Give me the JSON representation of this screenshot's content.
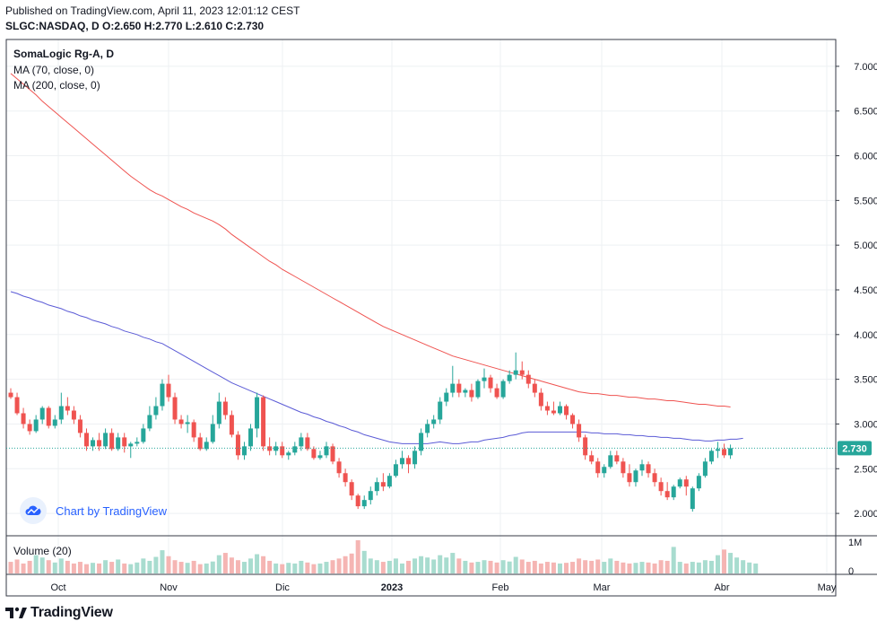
{
  "header": {
    "published": "Published on TradingView.com, April 11, 2023 12:01:12 CEST",
    "ohlc": "SLGC:NASDAQ, D  O:2.650  H:2.770  L:2.610  C:2.730"
  },
  "legend": {
    "title": "SomaLogic Rg-A, D",
    "ma70": "MA (70, close, 0)",
    "ma200": "MA (200, close, 0)",
    "volume": "Volume (20)"
  },
  "branding": {
    "chart_by": "Chart by TradingView",
    "logo": "TradingView"
  },
  "colors": {
    "up": "#26a69a",
    "down": "#ef5350",
    "ma70": "#5b5bd6",
    "ma200": "#ef5350",
    "last_price_bg": "#26a69a"
  },
  "chart_data": {
    "type": "candlestick",
    "symbol": "SLGC:NASDAQ",
    "interval": "D",
    "last_price": 2.73,
    "last_price_label": "2.730",
    "y_range": [
      1.75,
      7.3
    ],
    "y_ticks": [
      "7.000",
      "6.500",
      "6.000",
      "5.500",
      "5.000",
      "4.500",
      "4.000",
      "3.500",
      "3.000",
      "2.500",
      "2.000"
    ],
    "x_labels": [
      "Oct",
      "Nov",
      "Dic",
      "2023",
      "Feb",
      "Mar",
      "Abr",
      "May"
    ],
    "volume_axis_labels": [
      "1M",
      "0"
    ],
    "ohlc": [
      [
        3.35,
        3.4,
        3.28,
        3.3
      ],
      [
        3.3,
        3.35,
        3.1,
        3.12
      ],
      [
        3.12,
        3.18,
        2.95,
        3.0
      ],
      [
        3.0,
        3.05,
        2.88,
        2.92
      ],
      [
        2.92,
        3.1,
        2.9,
        3.05
      ],
      [
        3.05,
        3.2,
        3.0,
        3.18
      ],
      [
        3.18,
        3.2,
        2.95,
        2.98
      ],
      [
        2.98,
        3.1,
        2.95,
        3.05
      ],
      [
        3.05,
        3.35,
        3.0,
        3.2
      ],
      [
        3.2,
        3.3,
        3.1,
        3.15
      ],
      [
        3.15,
        3.2,
        3.0,
        3.05
      ],
      [
        3.05,
        3.1,
        2.85,
        2.9
      ],
      [
        2.9,
        2.95,
        2.7,
        2.75
      ],
      [
        2.75,
        2.85,
        2.7,
        2.82
      ],
      [
        2.82,
        2.9,
        2.7,
        2.75
      ],
      [
        2.75,
        2.95,
        2.72,
        2.9
      ],
      [
        2.9,
        2.95,
        2.7,
        2.72
      ],
      [
        2.72,
        2.9,
        2.7,
        2.85
      ],
      [
        2.85,
        2.9,
        2.68,
        2.75
      ],
      [
        2.75,
        2.8,
        2.62,
        2.78
      ],
      [
        2.78,
        2.85,
        2.75,
        2.8
      ],
      [
        2.8,
        3.0,
        2.78,
        2.95
      ],
      [
        2.95,
        3.2,
        2.92,
        3.1
      ],
      [
        3.1,
        3.3,
        3.05,
        3.2
      ],
      [
        3.2,
        3.5,
        3.15,
        3.45
      ],
      [
        3.45,
        3.55,
        3.25,
        3.3
      ],
      [
        3.3,
        3.35,
        3.0,
        3.05
      ],
      [
        3.05,
        3.1,
        2.95,
        3.0
      ],
      [
        3.0,
        3.1,
        2.9,
        3.02
      ],
      [
        3.02,
        3.05,
        2.8,
        2.85
      ],
      [
        2.85,
        2.9,
        2.7,
        2.72
      ],
      [
        2.72,
        2.85,
        2.7,
        2.8
      ],
      [
        2.8,
        3.1,
        2.78,
        3.0
      ],
      [
        3.0,
        3.35,
        2.95,
        3.25
      ],
      [
        3.25,
        3.3,
        3.05,
        3.1
      ],
      [
        3.1,
        3.15,
        2.85,
        2.88
      ],
      [
        2.88,
        2.92,
        2.6,
        2.65
      ],
      [
        2.65,
        2.8,
        2.6,
        2.75
      ],
      [
        2.75,
        3.0,
        2.7,
        2.95
      ],
      [
        2.95,
        3.35,
        2.85,
        3.3
      ],
      [
        3.3,
        3.32,
        2.7,
        2.75
      ],
      [
        2.75,
        2.85,
        2.65,
        2.7
      ],
      [
        2.7,
        2.8,
        2.65,
        2.75
      ],
      [
        2.75,
        2.8,
        2.62,
        2.65
      ],
      [
        2.65,
        2.7,
        2.6,
        2.68
      ],
      [
        2.68,
        2.8,
        2.65,
        2.75
      ],
      [
        2.75,
        2.9,
        2.7,
        2.85
      ],
      [
        2.85,
        2.9,
        2.7,
        2.72
      ],
      [
        2.72,
        2.75,
        2.6,
        2.62
      ],
      [
        2.62,
        2.7,
        2.6,
        2.65
      ],
      [
        2.65,
        2.8,
        2.62,
        2.75
      ],
      [
        2.75,
        2.78,
        2.55,
        2.58
      ],
      [
        2.58,
        2.62,
        2.4,
        2.45
      ],
      [
        2.45,
        2.5,
        2.3,
        2.35
      ],
      [
        2.35,
        2.38,
        2.15,
        2.2
      ],
      [
        2.2,
        2.22,
        2.05,
        2.08
      ],
      [
        2.08,
        2.2,
        2.05,
        2.15
      ],
      [
        2.15,
        2.3,
        2.1,
        2.25
      ],
      [
        2.25,
        2.4,
        2.2,
        2.35
      ],
      [
        2.35,
        2.45,
        2.25,
        2.3
      ],
      [
        2.3,
        2.45,
        2.28,
        2.42
      ],
      [
        2.42,
        2.6,
        2.4,
        2.55
      ],
      [
        2.55,
        2.7,
        2.5,
        2.62
      ],
      [
        2.62,
        2.65,
        2.45,
        2.55
      ],
      [
        2.55,
        2.75,
        2.5,
        2.7
      ],
      [
        2.7,
        2.95,
        2.65,
        2.9
      ],
      [
        2.9,
        3.05,
        2.85,
        3.0
      ],
      [
        3.0,
        3.1,
        2.95,
        3.05
      ],
      [
        3.05,
        3.3,
        3.0,
        3.25
      ],
      [
        3.25,
        3.4,
        3.2,
        3.35
      ],
      [
        3.35,
        3.65,
        3.3,
        3.45
      ],
      [
        3.45,
        3.5,
        3.3,
        3.35
      ],
      [
        3.35,
        3.4,
        3.3,
        3.38
      ],
      [
        3.38,
        3.45,
        3.25,
        3.3
      ],
      [
        3.3,
        3.5,
        3.28,
        3.48
      ],
      [
        3.48,
        3.62,
        3.4,
        3.52
      ],
      [
        3.52,
        3.55,
        3.35,
        3.4
      ],
      [
        3.4,
        3.45,
        3.28,
        3.3
      ],
      [
        3.3,
        3.5,
        3.28,
        3.48
      ],
      [
        3.48,
        3.6,
        3.45,
        3.55
      ],
      [
        3.55,
        3.8,
        3.5,
        3.6
      ],
      [
        3.6,
        3.7,
        3.5,
        3.55
      ],
      [
        3.55,
        3.6,
        3.4,
        3.45
      ],
      [
        3.45,
        3.5,
        3.3,
        3.35
      ],
      [
        3.35,
        3.4,
        3.15,
        3.2
      ],
      [
        3.2,
        3.25,
        3.1,
        3.15
      ],
      [
        3.15,
        3.25,
        3.1,
        3.12
      ],
      [
        3.12,
        3.25,
        3.1,
        3.2
      ],
      [
        3.2,
        3.22,
        3.05,
        3.1
      ],
      [
        3.1,
        3.12,
        2.95,
        3.0
      ],
      [
        3.0,
        3.05,
        2.8,
        2.85
      ],
      [
        2.85,
        2.88,
        2.6,
        2.65
      ],
      [
        2.65,
        2.7,
        2.55,
        2.58
      ],
      [
        2.58,
        2.62,
        2.4,
        2.45
      ],
      [
        2.45,
        2.55,
        2.4,
        2.52
      ],
      [
        2.52,
        2.7,
        2.5,
        2.65
      ],
      [
        2.65,
        2.7,
        2.55,
        2.58
      ],
      [
        2.58,
        2.62,
        2.4,
        2.45
      ],
      [
        2.45,
        2.55,
        2.3,
        2.35
      ],
      [
        2.35,
        2.5,
        2.3,
        2.48
      ],
      [
        2.48,
        2.6,
        2.42,
        2.55
      ],
      [
        2.55,
        2.58,
        2.4,
        2.45
      ],
      [
        2.45,
        2.5,
        2.3,
        2.35
      ],
      [
        2.35,
        2.4,
        2.2,
        2.25
      ],
      [
        2.25,
        2.35,
        2.15,
        2.18
      ],
      [
        2.18,
        2.32,
        2.15,
        2.3
      ],
      [
        2.3,
        2.4,
        2.28,
        2.38
      ],
      [
        2.38,
        2.42,
        2.2,
        2.3
      ],
      [
        2.05,
        2.3,
        2.02,
        2.28
      ],
      [
        2.28,
        2.45,
        2.25,
        2.42
      ],
      [
        2.42,
        2.62,
        2.4,
        2.58
      ],
      [
        2.58,
        2.72,
        2.55,
        2.7
      ],
      [
        2.7,
        2.8,
        2.62,
        2.72
      ],
      [
        2.72,
        2.78,
        2.62,
        2.65
      ],
      [
        2.65,
        2.77,
        2.61,
        2.73
      ]
    ],
    "ma70": [
      4.48,
      4.46,
      4.43,
      4.41,
      4.38,
      4.36,
      4.33,
      4.31,
      4.29,
      4.26,
      4.24,
      4.21,
      4.19,
      4.16,
      4.14,
      4.12,
      4.09,
      4.07,
      4.04,
      4.02,
      4.0,
      3.97,
      3.95,
      3.92,
      3.9,
      3.86,
      3.82,
      3.78,
      3.74,
      3.7,
      3.66,
      3.62,
      3.58,
      3.54,
      3.5,
      3.46,
      3.43,
      3.4,
      3.37,
      3.34,
      3.31,
      3.28,
      3.25,
      3.22,
      3.19,
      3.16,
      3.13,
      3.11,
      3.08,
      3.06,
      3.03,
      3.01,
      2.98,
      2.96,
      2.93,
      2.91,
      2.88,
      2.86,
      2.84,
      2.82,
      2.8,
      2.79,
      2.78,
      2.78,
      2.78,
      2.78,
      2.78,
      2.79,
      2.8,
      2.79,
      2.78,
      2.78,
      2.79,
      2.8,
      2.8,
      2.82,
      2.83,
      2.84,
      2.85,
      2.87,
      2.88,
      2.9,
      2.91,
      2.91,
      2.91,
      2.91,
      2.91,
      2.91,
      2.91,
      2.91,
      2.91,
      2.91,
      2.9,
      2.9,
      2.89,
      2.89,
      2.89,
      2.88,
      2.88,
      2.87,
      2.87,
      2.86,
      2.86,
      2.85,
      2.85,
      2.84,
      2.84,
      2.83,
      2.82,
      2.82,
      2.81,
      2.81,
      2.82,
      2.82,
      2.83,
      2.83,
      2.84
    ],
    "ma200": [
      6.92,
      6.86,
      6.8,
      6.74,
      6.68,
      6.61,
      6.55,
      6.49,
      6.43,
      6.37,
      6.31,
      6.25,
      6.19,
      6.13,
      6.07,
      6.01,
      5.95,
      5.89,
      5.83,
      5.77,
      5.72,
      5.67,
      5.62,
      5.58,
      5.55,
      5.51,
      5.47,
      5.43,
      5.4,
      5.36,
      5.33,
      5.3,
      5.27,
      5.23,
      5.18,
      5.12,
      5.07,
      5.02,
      4.97,
      4.92,
      4.87,
      4.82,
      4.78,
      4.73,
      4.69,
      4.65,
      4.61,
      4.57,
      4.53,
      4.49,
      4.45,
      4.41,
      4.37,
      4.33,
      4.29,
      4.25,
      4.21,
      4.17,
      4.13,
      4.09,
      4.06,
      4.03,
      4.0,
      3.97,
      3.94,
      3.91,
      3.88,
      3.85,
      3.82,
      3.79,
      3.76,
      3.74,
      3.72,
      3.7,
      3.68,
      3.66,
      3.64,
      3.62,
      3.6,
      3.58,
      3.56,
      3.54,
      3.52,
      3.5,
      3.48,
      3.46,
      3.44,
      3.42,
      3.4,
      3.38,
      3.36,
      3.35,
      3.34,
      3.34,
      3.33,
      3.32,
      3.32,
      3.31,
      3.3,
      3.3,
      3.29,
      3.28,
      3.28,
      3.27,
      3.26,
      3.26,
      3.25,
      3.24,
      3.23,
      3.22,
      3.22,
      3.21,
      3.2,
      3.2,
      3.19
    ],
    "volume": [
      0.35,
      0.42,
      0.3,
      0.38,
      0.55,
      0.48,
      0.4,
      0.33,
      0.45,
      0.38,
      0.3,
      0.35,
      0.28,
      0.32,
      0.3,
      0.4,
      0.35,
      0.42,
      0.3,
      0.28,
      0.33,
      0.45,
      0.38,
      0.5,
      0.7,
      0.52,
      0.4,
      0.35,
      0.32,
      0.38,
      0.28,
      0.3,
      0.36,
      0.55,
      0.62,
      0.48,
      0.4,
      0.35,
      0.45,
      0.58,
      0.52,
      0.38,
      0.3,
      0.28,
      0.32,
      0.3,
      0.38,
      0.33,
      0.28,
      0.3,
      0.35,
      0.4,
      0.45,
      0.52,
      0.6,
      1.0,
      0.68,
      0.45,
      0.4,
      0.35,
      0.38,
      0.45,
      0.3,
      0.38,
      0.45,
      0.52,
      0.48,
      0.42,
      0.55,
      0.48,
      0.62,
      0.45,
      0.38,
      0.33,
      0.35,
      0.4,
      0.38,
      0.33,
      0.4,
      0.36,
      0.5,
      0.42,
      0.35,
      0.38,
      0.3,
      0.35,
      0.33,
      0.3,
      0.32,
      0.35,
      0.45,
      0.4,
      0.38,
      0.42,
      0.35,
      0.45,
      0.38,
      0.33,
      0.3,
      0.32,
      0.35,
      0.33,
      0.3,
      0.4,
      0.38,
      0.8,
      0.35,
      0.3,
      0.35,
      0.33,
      0.4,
      0.38,
      0.55,
      0.72,
      0.62,
      0.48,
      0.4,
      0.33,
      0.3
    ]
  }
}
